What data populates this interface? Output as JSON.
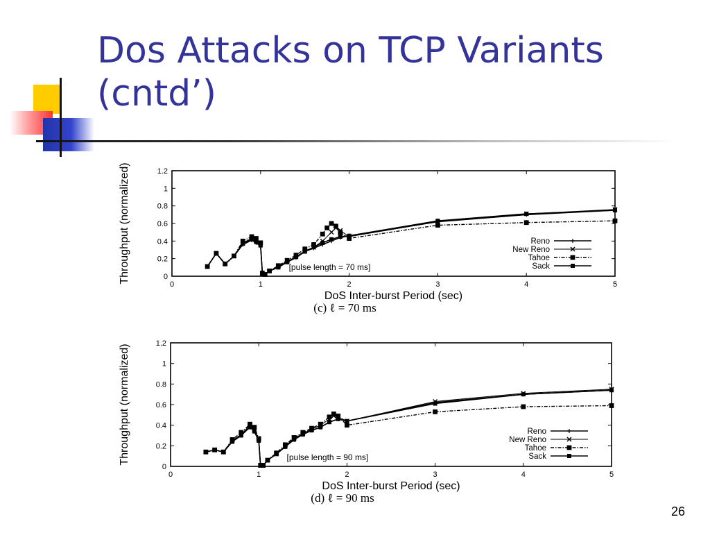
{
  "slide": {
    "title_line1": "Dos Attacks on TCP Variants",
    "title_line2": "(cntd’)",
    "page_number": "26"
  },
  "chart_data": [
    {
      "type": "line",
      "caption": "(c) ℓ = 70 ms",
      "annotation": "[pulse length = 70 ms]",
      "xlabel": "DoS Inter-burst Period (sec)",
      "ylabel": "Throughput (normalized)",
      "xlim": [
        0,
        5
      ],
      "ylim": [
        0,
        1.2
      ],
      "xticks": [
        "0",
        "1",
        "2",
        "3",
        "4",
        "5"
      ],
      "yticks": [
        "0",
        "0.2",
        "0.4",
        "0.6",
        "0.8",
        "1",
        "1.2"
      ],
      "grid": false,
      "legend_position": "bottom-right",
      "series": [
        {
          "name": "Reno",
          "marker": "plus",
          "dash": "solid",
          "x": [
            0.4,
            0.5,
            0.6,
            0.7,
            0.8,
            0.9,
            0.95,
            1.0,
            1.02,
            1.05,
            1.1,
            1.2,
            1.3,
            1.4,
            1.5,
            1.6,
            1.7,
            1.8,
            1.9,
            2.0,
            3.0,
            4.0,
            5.0
          ],
          "y": [
            0.11,
            0.26,
            0.14,
            0.23,
            0.36,
            0.41,
            0.38,
            0.34,
            0.04,
            0.02,
            0.06,
            0.1,
            0.16,
            0.21,
            0.28,
            0.32,
            0.36,
            0.4,
            0.44,
            0.46,
            0.62,
            0.7,
            0.75
          ]
        },
        {
          "name": "New Reno",
          "marker": "x",
          "dash": "thin",
          "x": [
            0.4,
            0.5,
            0.6,
            0.7,
            0.8,
            0.9,
            0.95,
            1.0,
            1.02,
            1.05,
            1.1,
            1.2,
            1.3,
            1.4,
            1.5,
            1.6,
            1.7,
            1.8,
            1.85,
            1.9,
            2.0,
            3.0,
            4.0,
            5.0
          ],
          "y": [
            0.11,
            0.26,
            0.14,
            0.23,
            0.38,
            0.43,
            0.4,
            0.36,
            0.03,
            0.02,
            0.06,
            0.11,
            0.17,
            0.22,
            0.29,
            0.33,
            0.4,
            0.5,
            0.55,
            0.52,
            0.45,
            0.62,
            0.71,
            0.76
          ]
        },
        {
          "name": "Tahoe",
          "marker": "square",
          "dash": "dashdot",
          "x": [
            0.4,
            0.5,
            0.6,
            0.7,
            0.8,
            0.9,
            0.95,
            1.0,
            1.02,
            1.05,
            1.1,
            1.2,
            1.3,
            1.4,
            1.5,
            1.6,
            1.7,
            1.75,
            1.8,
            1.85,
            1.9,
            2.0,
            3.0,
            4.0,
            5.0
          ],
          "y": [
            0.11,
            0.26,
            0.14,
            0.23,
            0.4,
            0.45,
            0.43,
            0.38,
            0.03,
            0.02,
            0.06,
            0.12,
            0.18,
            0.24,
            0.31,
            0.36,
            0.48,
            0.55,
            0.6,
            0.57,
            0.5,
            0.43,
            0.58,
            0.61,
            0.63
          ]
        },
        {
          "name": "Sack",
          "marker": "filledsquare",
          "dash": "solid",
          "x": [
            0.4,
            0.5,
            0.6,
            0.7,
            0.8,
            0.9,
            0.95,
            1.0,
            1.02,
            1.05,
            1.1,
            1.2,
            1.3,
            1.4,
            1.5,
            1.6,
            1.7,
            1.8,
            1.9,
            2.0,
            3.0,
            4.0,
            5.0
          ],
          "y": [
            0.11,
            0.26,
            0.14,
            0.23,
            0.37,
            0.42,
            0.39,
            0.35,
            0.04,
            0.02,
            0.06,
            0.1,
            0.16,
            0.22,
            0.28,
            0.33,
            0.38,
            0.42,
            0.45,
            0.46,
            0.63,
            0.71,
            0.75
          ]
        }
      ]
    },
    {
      "type": "line",
      "caption": "(d) ℓ = 90 ms",
      "annotation": "[pulse length = 90 ms]",
      "xlabel": "DoS Inter-burst Period (sec)",
      "ylabel": "Throughput (normalized)",
      "xlim": [
        0,
        5
      ],
      "ylim": [
        0,
        1.2
      ],
      "xticks": [
        "0",
        "1",
        "2",
        "3",
        "4",
        "5"
      ],
      "yticks": [
        "0",
        "0.2",
        "0.4",
        "0.6",
        "0.8",
        "1",
        "1.2"
      ],
      "grid": false,
      "legend_position": "bottom-right",
      "series": [
        {
          "name": "Reno",
          "marker": "plus",
          "dash": "solid",
          "x": [
            0.4,
            0.5,
            0.6,
            0.7,
            0.8,
            0.9,
            0.95,
            1.0,
            1.02,
            1.05,
            1.1,
            1.2,
            1.3,
            1.4,
            1.5,
            1.6,
            1.7,
            1.8,
            1.9,
            2.0,
            3.0,
            4.0,
            5.0
          ],
          "y": [
            0.14,
            0.16,
            0.14,
            0.24,
            0.3,
            0.39,
            0.34,
            0.25,
            0.01,
            0.01,
            0.06,
            0.12,
            0.19,
            0.26,
            0.31,
            0.35,
            0.38,
            0.43,
            0.46,
            0.44,
            0.62,
            0.7,
            0.74
          ]
        },
        {
          "name": "New Reno",
          "marker": "x",
          "dash": "thin",
          "x": [
            0.4,
            0.5,
            0.6,
            0.7,
            0.8,
            0.9,
            0.95,
            1.0,
            1.02,
            1.05,
            1.1,
            1.2,
            1.3,
            1.4,
            1.5,
            1.6,
            1.7,
            1.8,
            1.85,
            1.9,
            2.0,
            3.0,
            4.0,
            5.0
          ],
          "y": [
            0.14,
            0.16,
            0.14,
            0.25,
            0.31,
            0.4,
            0.36,
            0.26,
            0.01,
            0.01,
            0.06,
            0.12,
            0.2,
            0.27,
            0.32,
            0.36,
            0.4,
            0.46,
            0.49,
            0.48,
            0.44,
            0.63,
            0.71,
            0.75
          ]
        },
        {
          "name": "Tahoe",
          "marker": "square",
          "dash": "dashdot",
          "x": [
            0.4,
            0.5,
            0.6,
            0.7,
            0.8,
            0.9,
            0.95,
            1.0,
            1.02,
            1.05,
            1.1,
            1.2,
            1.3,
            1.4,
            1.5,
            1.6,
            1.7,
            1.8,
            1.85,
            1.9,
            2.0,
            3.0,
            4.0,
            5.0
          ],
          "y": [
            0.14,
            0.16,
            0.14,
            0.26,
            0.33,
            0.41,
            0.38,
            0.27,
            0.01,
            0.01,
            0.06,
            0.13,
            0.21,
            0.28,
            0.33,
            0.37,
            0.41,
            0.48,
            0.51,
            0.49,
            0.4,
            0.53,
            0.58,
            0.59
          ]
        },
        {
          "name": "Sack",
          "marker": "filledsquare",
          "dash": "solid",
          "x": [
            0.4,
            0.5,
            0.6,
            0.7,
            0.8,
            0.9,
            0.95,
            1.0,
            1.02,
            1.05,
            1.1,
            1.2,
            1.3,
            1.4,
            1.5,
            1.6,
            1.7,
            1.8,
            1.9,
            2.0,
            3.0,
            4.0,
            5.0
          ],
          "y": [
            0.14,
            0.16,
            0.14,
            0.24,
            0.3,
            0.38,
            0.34,
            0.25,
            0.01,
            0.01,
            0.06,
            0.12,
            0.19,
            0.26,
            0.31,
            0.35,
            0.38,
            0.43,
            0.46,
            0.44,
            0.61,
            0.7,
            0.74
          ]
        }
      ]
    }
  ]
}
